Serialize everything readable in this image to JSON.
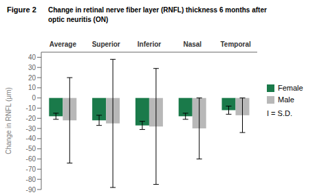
{
  "chart_data": {
    "type": "bar",
    "title": "Change in retinal nerve fiber layer (RNFL) thickness 6 months after\noptic neuritis (ON)",
    "annotations": [
      "Figure 2",
      "I = S.D."
    ],
    "categories": [
      "Average",
      "Superior",
      "Inferior",
      "Nasal",
      "Temporal"
    ],
    "series": [
      {
        "name": "Female",
        "color": "#1a7a4a",
        "values": [
          -18,
          -22,
          -27,
          -18,
          -12
        ],
        "sd_lower": [
          3,
          5,
          4,
          3,
          4
        ],
        "sd_upper": [
          3,
          5,
          4,
          3,
          4
        ]
      },
      {
        "name": "Male",
        "color": "#b8b8b8",
        "values": [
          -22,
          -25,
          -28,
          -30,
          -17
        ],
        "sd_lower": [
          42,
          63,
          57,
          30,
          17
        ],
        "sd_upper": [
          42,
          63,
          57,
          30,
          17
        ]
      }
    ],
    "ylabel": "Change in RNFL (μm)",
    "ylim": [
      -90,
      45
    ],
    "yticks": [
      40,
      30,
      20,
      10,
      0,
      -10,
      -20,
      -30,
      -40,
      -50,
      -60,
      -70,
      -80,
      -90
    ],
    "grid": false,
    "legend": "right"
  }
}
